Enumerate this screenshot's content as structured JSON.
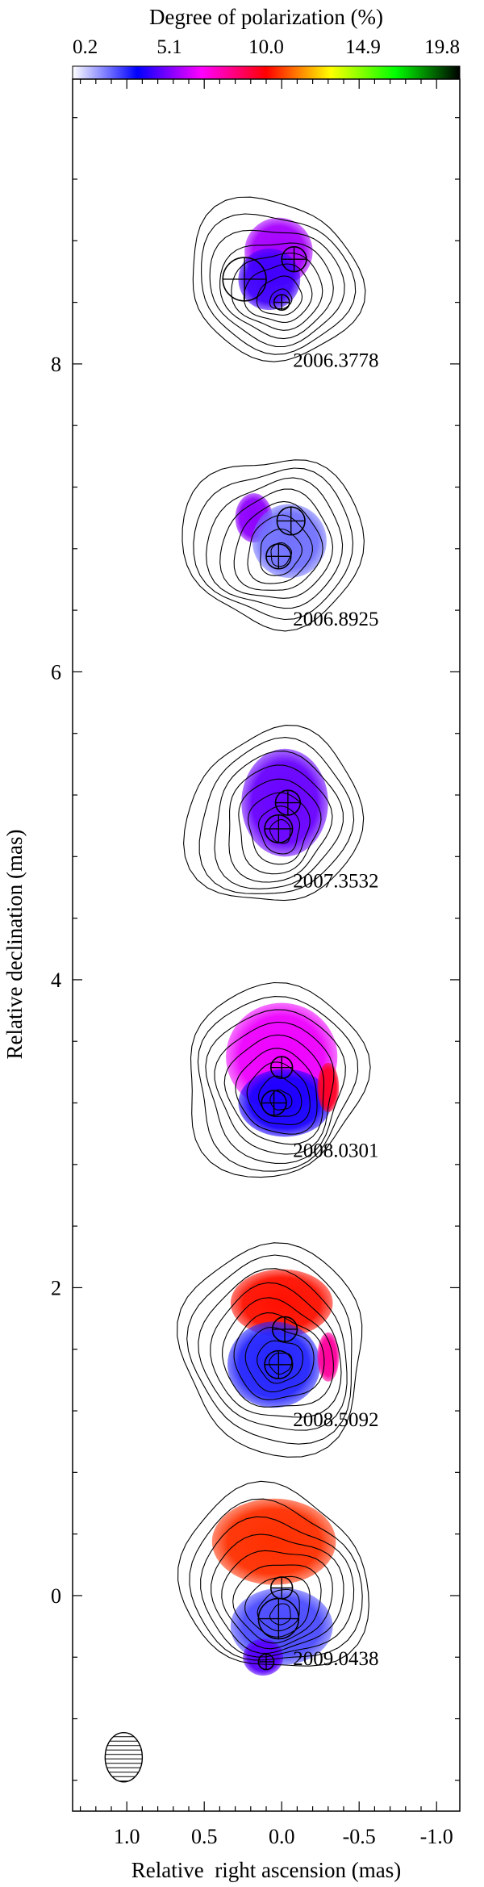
{
  "chart_data": {
    "type": "contour-map",
    "colorbar": {
      "title": "Degree of polarization (%)",
      "ticks": [
        "0.2",
        "5.1",
        "10.0",
        "14.9",
        "19.8"
      ],
      "range": [
        0.2,
        19.8
      ],
      "colors": [
        "#ffffff",
        "#0000ff",
        "#ff00ff",
        "#ff0000",
        "#ffff00",
        "#00ff00",
        "#000000"
      ]
    },
    "xlabel": "Relative  right ascension (mas)",
    "ylabel": "Relative declination (mas)",
    "xlim": [
      1.35,
      -1.15
    ],
    "ylim": [
      -1.4,
      9.85
    ],
    "xticks": [
      {
        "v": 1.0,
        "label": "1.0"
      },
      {
        "v": 0.5,
        "label": "0.5"
      },
      {
        "v": 0.0,
        "label": "0.0"
      },
      {
        "v": -0.5,
        "label": "-0.5"
      },
      {
        "v": -1.0,
        "label": "-1.0"
      }
    ],
    "yticks": [
      {
        "v": 0,
        "label": "0"
      },
      {
        "v": 2,
        "label": "2"
      },
      {
        "v": 4,
        "label": "4"
      },
      {
        "v": 6,
        "label": "6"
      },
      {
        "v": 8,
        "label": "8"
      }
    ],
    "epochs": [
      {
        "label": "2006.3778",
        "label_pos": [
          -0.35,
          7.98
        ],
        "y": 8.5,
        "core": [
          0.0,
          8.4
        ],
        "pol": [
          {
            "x": 0.02,
            "y": 8.73,
            "rx": 0.22,
            "ry": 0.22,
            "value": 5.6
          },
          {
            "x": 0.08,
            "y": 8.55,
            "rx": 0.2,
            "ry": 0.2,
            "value": 4.3
          }
        ],
        "components": [
          {
            "x": 0.24,
            "y": 8.55,
            "r": 0.14
          },
          {
            "x": -0.08,
            "y": 8.68,
            "r": 0.08
          },
          {
            "x": 0.0,
            "y": 8.4,
            "r": 0.05
          }
        ],
        "contours": {
          "center": [
            0.05,
            8.55
          ],
          "rx": 0.55,
          "ry": 0.52,
          "levels": 8
        }
      },
      {
        "label": "2006.8925",
        "label_pos": [
          -0.35,
          6.3
        ],
        "y": 6.85,
        "core": [
          0.0,
          6.75
        ],
        "pol": [
          {
            "x": 0.18,
            "y": 7.0,
            "rx": 0.12,
            "ry": 0.16,
            "value": 5.3
          },
          {
            "x": -0.05,
            "y": 6.85,
            "rx": 0.24,
            "ry": 0.24,
            "value": 2.0
          }
        ],
        "components": [
          {
            "x": -0.06,
            "y": 6.98,
            "r": 0.09
          },
          {
            "x": 0.02,
            "y": 6.75,
            "r": 0.08
          }
        ],
        "contours": {
          "center": [
            0.05,
            6.85
          ],
          "rx": 0.55,
          "ry": 0.58,
          "levels": 8
        }
      },
      {
        "label": "2007.3532",
        "label_pos": [
          -0.35,
          4.6
        ],
        "y": 5.1,
        "core": [
          0.0,
          4.95
        ],
        "pol": [
          {
            "x": -0.02,
            "y": 5.15,
            "rx": 0.28,
            "ry": 0.35,
            "value": 4.8
          }
        ],
        "components": [
          {
            "x": -0.04,
            "y": 5.15,
            "r": 0.08
          },
          {
            "x": 0.02,
            "y": 4.98,
            "r": 0.09
          }
        ],
        "contours": {
          "center": [
            0.05,
            5.05
          ],
          "rx": 0.55,
          "ry": 0.58,
          "levels": 8
        }
      },
      {
        "label": "2008.0301",
        "label_pos": [
          -0.35,
          2.85
        ],
        "y": 3.4,
        "core": [
          0.0,
          3.2
        ],
        "pol": [
          {
            "x": 0.0,
            "y": 3.5,
            "rx": 0.36,
            "ry": 0.35,
            "value": 6.5
          },
          {
            "x": -0.02,
            "y": 3.2,
            "rx": 0.3,
            "ry": 0.22,
            "value": 3.8
          },
          {
            "x": -0.3,
            "y": 3.3,
            "rx": 0.07,
            "ry": 0.16,
            "value": 9.5
          }
        ],
        "components": [
          {
            "x": 0.0,
            "y": 3.43,
            "r": 0.07
          },
          {
            "x": 0.05,
            "y": 3.2,
            "r": 0.08
          }
        ],
        "contours": {
          "center": [
            0.05,
            3.35
          ],
          "rx": 0.6,
          "ry": 0.6,
          "levels": 9
        }
      },
      {
        "label": "2008.5092",
        "label_pos": [
          -0.35,
          1.1
        ],
        "y": 1.7,
        "core": [
          0.0,
          1.5
        ],
        "pol": [
          {
            "x": 0.0,
            "y": 1.9,
            "rx": 0.33,
            "ry": 0.22,
            "value": 10.2
          },
          {
            "x": 0.05,
            "y": 1.5,
            "rx": 0.3,
            "ry": 0.28,
            "value": 3.0
          },
          {
            "x": -0.3,
            "y": 1.55,
            "rx": 0.07,
            "ry": 0.16,
            "value": 8.0
          }
        ],
        "components": [
          {
            "x": -0.02,
            "y": 1.73,
            "r": 0.08
          },
          {
            "x": 0.02,
            "y": 1.5,
            "r": 0.09
          }
        ],
        "contours": {
          "center": [
            0.05,
            1.6
          ],
          "rx": 0.62,
          "ry": 0.65,
          "levels": 9
        }
      },
      {
        "label": "2009.0438",
        "label_pos": [
          -0.35,
          -0.45
        ],
        "y": 0.0,
        "core": [
          0.0,
          -0.15
        ],
        "pol": [
          {
            "x": 0.05,
            "y": 0.35,
            "rx": 0.4,
            "ry": 0.28,
            "value": 10.6
          },
          {
            "x": 0.0,
            "y": -0.2,
            "rx": 0.33,
            "ry": 0.25,
            "value": 2.5
          },
          {
            "x": 0.12,
            "y": -0.4,
            "rx": 0.13,
            "ry": 0.12,
            "value": 4.6
          }
        ],
        "components": [
          {
            "x": 0.0,
            "y": 0.05,
            "r": 0.07
          },
          {
            "x": 0.02,
            "y": -0.15,
            "r": 0.13
          },
          {
            "x": 0.1,
            "y": -0.43,
            "r": 0.05
          }
        ],
        "contours": {
          "center": [
            0.05,
            0.1
          ],
          "rx": 0.6,
          "ry": 0.6,
          "levels": 9
        }
      }
    ],
    "beam": {
      "x": 1.02,
      "y": -1.05,
      "rx": 0.12,
      "ry": 0.16
    }
  }
}
